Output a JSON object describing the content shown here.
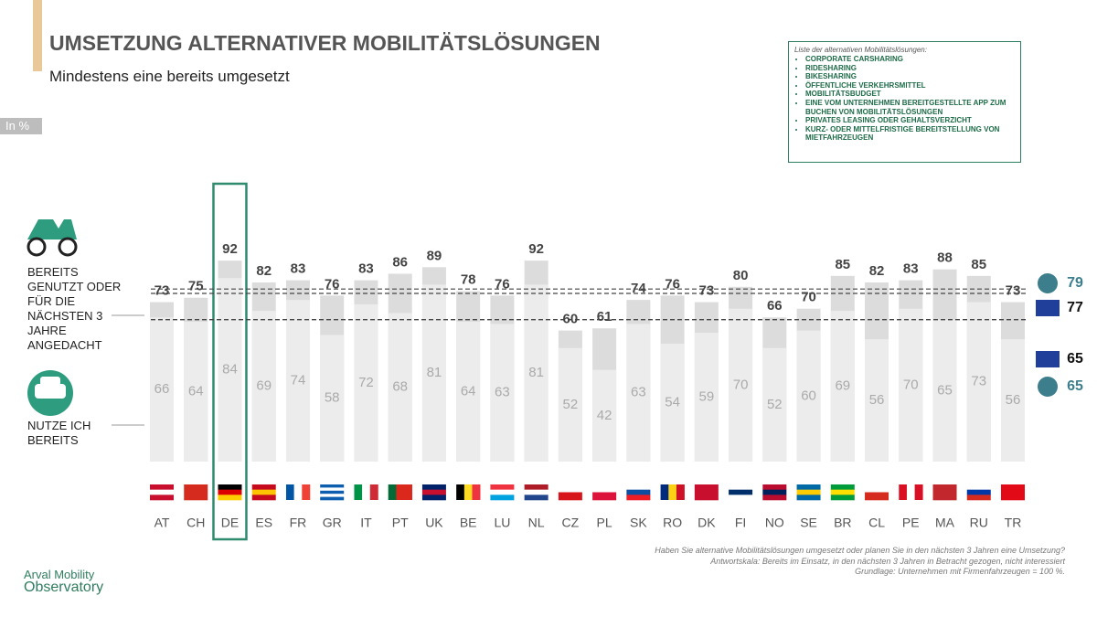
{
  "chart_data": {
    "type": "bar",
    "title": "UMSETZUNG ALTERNATIVER MOBILITÄTSLÖSUNGEN",
    "subtitle": "Mindestens eine bereits umgesetzt",
    "unit_label": "In %",
    "categories": [
      "AT",
      "CH",
      "DE",
      "ES",
      "FR",
      "GR",
      "IT",
      "PT",
      "UK",
      "BE",
      "LU",
      "NL",
      "CZ",
      "PL",
      "SK",
      "RO",
      "DK",
      "FI",
      "NO",
      "SE",
      "BR",
      "CL",
      "PE",
      "MA",
      "RU",
      "TR"
    ],
    "highlight": "DE",
    "series": [
      {
        "name": "BEREITS GENUTZT ODER FÜR DIE NÄCHSTEN 3 JAHRE ANGEDACHT",
        "color": "#dcdcdc",
        "values": [
          73,
          75,
          92,
          82,
          83,
          76,
          83,
          86,
          89,
          78,
          76,
          92,
          60,
          61,
          74,
          76,
          73,
          80,
          66,
          70,
          85,
          82,
          83,
          88,
          85,
          73
        ],
        "reference_values": [
          79,
          77
        ]
      },
      {
        "name": "NUTZE ICH BEREITS",
        "color": "#ececec",
        "values": [
          66,
          64,
          84,
          69,
          74,
          58,
          72,
          68,
          81,
          64,
          63,
          81,
          52,
          42,
          63,
          54,
          59,
          70,
          52,
          60,
          69,
          56,
          70,
          65,
          73,
          56
        ],
        "reference_values": [
          65,
          65
        ]
      }
    ],
    "ylim": [
      0,
      100
    ],
    "legend_title": "Liste der alternativen Mobilitätslösungen:",
    "legend_items": [
      "CORPORATE CARSHARING",
      "RIDESHARING",
      "BIKESHARING",
      "ÖFFENTLICHE VERKEHRSMITTEL",
      "MOBILITÄTSBUDGET",
      "EINE VOM UNTERNEHMEN BEREITGESTELLTE APP ZUM BUCHEN VON MOBILITÄTSLÖSUNGEN",
      "PRIVATES LEASING ODER GEHALTSVERZICHT",
      "KURZ- ODER MITTELFRISTIGE BEREITSTELLUNG VON MIETFAHRZEUGEN"
    ],
    "footnotes": [
      "Haben Sie alternative Mobilitätslösungen umgesetzt oder planen Sie in den nächsten 3 Jahren eine Umsetzung?",
      "Antwortskala: Bereits im Einsatz, in den nächsten 3 Jahren in Betracht gezogen, nicht interessiert",
      "Grundlage: Unternehmen mit Firmenfahrzeugen = 100 %."
    ],
    "source_logo": [
      "Arval Mobility",
      "Observatory"
    ]
  }
}
